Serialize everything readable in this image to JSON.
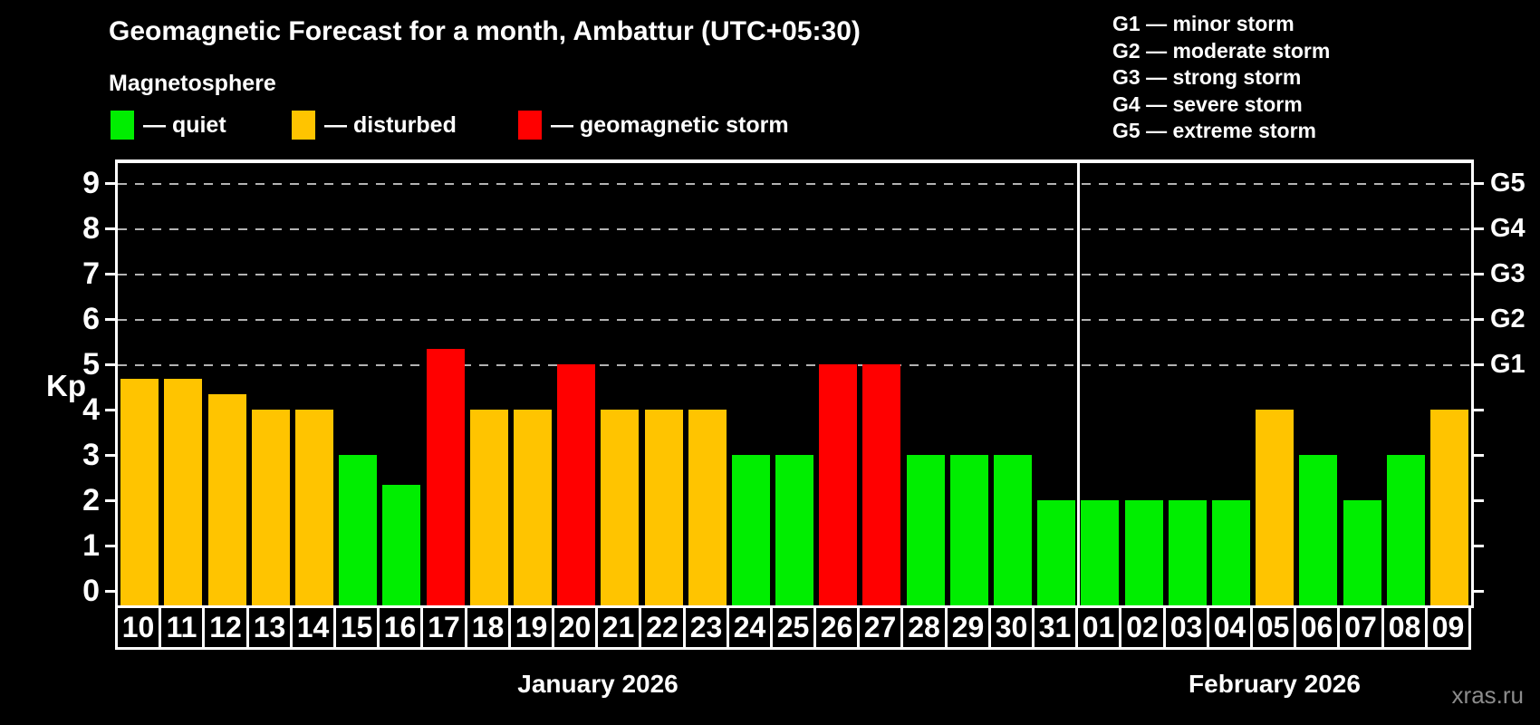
{
  "title": "Geomagnetic Forecast for a month, Ambattur (UTC+05:30)",
  "subtitle": "Magnetosphere",
  "legend": [
    {
      "key": "quiet",
      "label": "— quiet",
      "color": "#00ee00"
    },
    {
      "key": "disturbed",
      "label": "— disturbed",
      "color": "#ffc400"
    },
    {
      "key": "storm",
      "label": "— geomagnetic storm",
      "color": "#ff0000"
    }
  ],
  "g_legend": [
    "G1 — minor storm",
    "G2 — moderate storm",
    "G3 — strong storm",
    "G4 — severe storm",
    "G5 — extreme storm"
  ],
  "y_axis": {
    "label": "Kp",
    "ticks": [
      0,
      1,
      2,
      3,
      4,
      5,
      6,
      7,
      8,
      9
    ]
  },
  "right_axis": {
    "labels": [
      {
        "value": 5,
        "label": "G1"
      },
      {
        "value": 6,
        "label": "G2"
      },
      {
        "value": 7,
        "label": "G3"
      },
      {
        "value": 8,
        "label": "G4"
      },
      {
        "value": 9,
        "label": "G5"
      }
    ]
  },
  "months": [
    {
      "label": "January 2026",
      "days": 22
    },
    {
      "label": "February 2026",
      "days": 9
    }
  ],
  "watermark": "xras.ru",
  "colors": {
    "quiet": "#00ee00",
    "disturbed": "#ffc400",
    "storm": "#ff0000",
    "grid": "#b3b3b3",
    "frame": "#ffffff",
    "background": "#000000",
    "watermark": "#8c8c8c"
  },
  "chart_data": {
    "type": "bar",
    "title": "Geomagnetic Forecast for a month, Ambattur (UTC+05:30)",
    "xlabel": "",
    "ylabel": "Kp",
    "ylim": [
      0,
      9
    ],
    "grid": "dashed horizontal at Kp 5-9 (G1-G5 levels) only",
    "legend_position": "top-left",
    "categories": [
      "10",
      "11",
      "12",
      "13",
      "14",
      "15",
      "16",
      "17",
      "18",
      "19",
      "20",
      "21",
      "22",
      "23",
      "24",
      "25",
      "26",
      "27",
      "28",
      "29",
      "30",
      "31",
      "01",
      "02",
      "03",
      "04",
      "05",
      "06",
      "07",
      "08",
      "09"
    ],
    "values": [
      4.67,
      4.67,
      4.33,
      4,
      4,
      3,
      2.33,
      5.33,
      4,
      4,
      5,
      4,
      4,
      4,
      3,
      3,
      5,
      5,
      3,
      3,
      3,
      2,
      2,
      2,
      2,
      2,
      4,
      3,
      2,
      3,
      4
    ],
    "status": [
      "disturbed",
      "disturbed",
      "disturbed",
      "disturbed",
      "disturbed",
      "quiet",
      "quiet",
      "storm",
      "disturbed",
      "disturbed",
      "storm",
      "disturbed",
      "disturbed",
      "disturbed",
      "quiet",
      "quiet",
      "storm",
      "storm",
      "quiet",
      "quiet",
      "quiet",
      "quiet",
      "quiet",
      "quiet",
      "quiet",
      "quiet",
      "disturbed",
      "quiet",
      "quiet",
      "quiet",
      "disturbed"
    ],
    "month_split_index": 22
  }
}
